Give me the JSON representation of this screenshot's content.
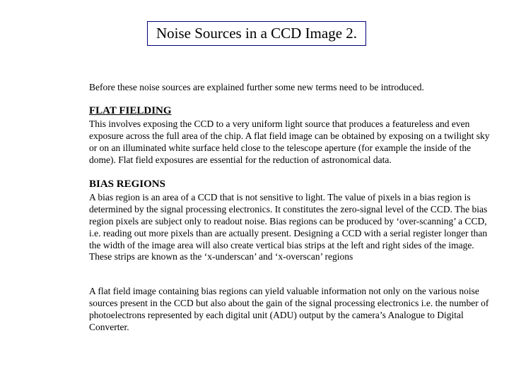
{
  "title": "Noise Sources in a CCD Image 2.",
  "intro": "Before these noise sources are explained further some new terms need to be introduced.",
  "section1": {
    "heading": "FLAT FIELDING",
    "body": "This involves exposing the CCD to a very uniform light source that produces a featureless and even exposure across the full area of the chip. A flat field image can be obtained by exposing on a twilight sky  or on an illuminated white surface held close to the telescope aperture (for example the inside of the dome).  Flat field exposures are essential for the reduction of astronomical data."
  },
  "section2": {
    "heading": "BIAS REGIONS",
    "body": "A bias region is an area of a CCD that is not sensitive to light. The value of pixels in a bias region is determined by the signal processing electronics. It constitutes the zero-signal level of the CCD. The bias region pixels are subject only to readout noise. Bias regions can be produced by ‘over-scanning’ a CCD, i.e. reading out more pixels than are actually present. Designing a CCD with a serial register longer than the width of the image area will also create vertical bias strips at the left and right sides of the image. These strips are known as the ‘x-underscan’ and ‘x-overscan’ regions"
  },
  "closing": "A flat field image containing bias regions can yield valuable information not only on the various noise sources present in the CCD but also about the gain of the signal processing electronics i.e. the number of photoelectrons represented by each digital unit (ADU) output by the camera’s Analogue to Digital Converter.",
  "colors": {
    "title_border": "#000080",
    "text": "#000000",
    "background": "#ffffff"
  },
  "fonts": {
    "family": "Times New Roman",
    "title_size_pt": 21,
    "heading_size_pt": 15,
    "body_size_pt": 13.5
  }
}
